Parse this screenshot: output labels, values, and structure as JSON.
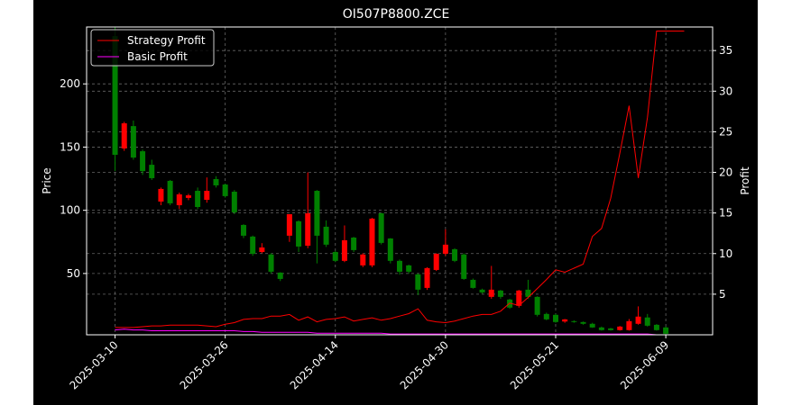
{
  "chart_data": {
    "type": "candlestick",
    "title": "OI507P8800.ZCE",
    "ylabel": "Price",
    "y2label": "Profit",
    "categories": [
      "2025-03-10",
      null,
      null,
      null,
      null,
      null,
      null,
      null,
      null,
      null,
      null,
      null,
      "2025-03-26",
      null,
      null,
      null,
      null,
      null,
      null,
      null,
      null,
      null,
      null,
      null,
      "2025-04-14",
      null,
      null,
      null,
      null,
      null,
      null,
      null,
      null,
      null,
      null,
      null,
      "2025-04-30",
      null,
      null,
      null,
      null,
      null,
      null,
      null,
      null,
      null,
      null,
      null,
      "2025-05-21",
      null,
      null,
      null,
      null,
      null,
      null,
      null,
      null,
      null,
      null,
      null,
      "2025-06-09",
      null,
      null
    ],
    "open": [
      237.8,
      148.9,
      166.6,
      146.7,
      136,
      106.9,
      123.3,
      104,
      109.8,
      115.4,
      108.3,
      124.7,
      120.4,
      114.7,
      88.4,
      79.2,
      67,
      65,
      50.7,
      79.9,
      91.3,
      72,
      115.4,
      87,
      67,
      60,
      78.4,
      56.4,
      56.4,
      97.6,
      77.7,
      60,
      56.4,
      49.3,
      38.6,
      52.8,
      65.6,
      69.2,
      65,
      45,
      37.2,
      31.5,
      36.5,
      29.4,
      24.4,
      37.2,
      31.5,
      18,
      17.3,
      12,
      12.3,
      11.6,
      10.2,
      7.3,
      6.5,
      5.2,
      5.2,
      10.2,
      15.2,
      9.4,
      7.3,
      null,
      null
    ],
    "high": [
      245,
      170,
      171,
      148,
      140,
      118,
      124,
      114,
      113,
      118,
      126,
      127,
      121,
      116,
      89,
      80,
      74,
      66,
      51,
      97,
      92,
      130,
      116,
      92,
      68,
      88,
      79,
      66,
      94,
      98,
      78,
      61,
      57,
      50,
      55,
      66,
      85,
      70,
      66,
      46,
      38,
      56,
      37,
      30,
      37,
      45,
      32,
      19,
      18,
      14,
      13,
      12,
      11,
      8,
      7,
      8.5,
      14,
      24,
      18,
      10,
      8,
      null,
      null
    ],
    "low": [
      131,
      147,
      140,
      128,
      124,
      104,
      104,
      101,
      108,
      101,
      106,
      118,
      110,
      97,
      78,
      64,
      66,
      50,
      44,
      75,
      67,
      70,
      58,
      71,
      59,
      59,
      67,
      55,
      55,
      73,
      58,
      49,
      50,
      33,
      37,
      52,
      64,
      59,
      45,
      38,
      34,
      30,
      30,
      22,
      23,
      30,
      16,
      13,
      11,
      11,
      11,
      9.5,
      7,
      4.8,
      4.8,
      4.8,
      4.8,
      9.5,
      8,
      4.8,
      1.9,
      null,
      null
    ],
    "close": [
      143.9,
      168.8,
      141.7,
      131,
      125.4,
      116.9,
      105.5,
      112.6,
      111.8,
      102.6,
      115.4,
      119.7,
      111.2,
      98.4,
      79.9,
      65.6,
      70.6,
      51.4,
      45.7,
      96.9,
      71.3,
      97.6,
      79.9,
      72.8,
      60,
      76.3,
      68.5,
      65,
      93.4,
      74.2,
      60,
      51.4,
      51.4,
      37.2,
      54.3,
      65.6,
      72.8,
      60,
      45.7,
      38.6,
      35,
      37.2,
      31.5,
      23,
      36.5,
      31.5,
      17.3,
      13.7,
      11.6,
      13.7,
      11.6,
      10.2,
      7.3,
      5.2,
      5.2,
      8,
      12.3,
      15.9,
      8.7,
      5.2,
      2.3,
      null,
      null
    ],
    "up_color": "#ff0000",
    "down_color": "#008000",
    "series": [
      {
        "name": "Strategy Profit",
        "color": "#ff0000",
        "axis": "y2",
        "values": [
          0.9,
          0.9,
          0.9,
          1.0,
          1.1,
          1.1,
          1.2,
          1.2,
          1.2,
          1.2,
          1.1,
          1.0,
          1.3,
          1.5,
          1.9,
          2.0,
          2.0,
          2.3,
          2.3,
          2.5,
          1.8,
          2.2,
          1.6,
          1.9,
          2.0,
          2.2,
          1.7,
          1.9,
          2.1,
          1.8,
          2.0,
          2.3,
          2.6,
          3.2,
          1.8,
          1.6,
          1.5,
          1.7,
          2.0,
          2.3,
          2.5,
          2.5,
          2.9,
          3.9,
          3.6,
          4.6,
          5.7,
          6.8,
          8.0,
          7.7,
          8.2,
          8.7,
          12.1,
          13.1,
          16.8,
          22.4,
          28.2,
          19.3,
          26.8,
          37.4,
          37.4,
          37.4,
          37.4
        ]
      },
      {
        "name": "Basic Profit",
        "color": "#ff00ff",
        "axis": "y2",
        "values": [
          0.6,
          0.7,
          0.6,
          0.6,
          0.5,
          0.5,
          0.5,
          0.5,
          0.5,
          0.5,
          0.5,
          0.5,
          0.5,
          0.5,
          0.4,
          0.4,
          0.3,
          0.3,
          0.3,
          0.3,
          0.3,
          0.3,
          0.2,
          0.2,
          0.2,
          0.2,
          0.2,
          0.2,
          0.2,
          0.2,
          0.1,
          0.1,
          0.1,
          0.1,
          0.1,
          0.1,
          0.1,
          0.1,
          0.1,
          0.1,
          0.1,
          0.1,
          0.1,
          0.1,
          0.1,
          0.1,
          0.1,
          0.1,
          0.1,
          0.1,
          0.1,
          0.1,
          0.1,
          0.1,
          0.1,
          0.1,
          0.1,
          0.1,
          0.1,
          0.0,
          0.0,
          0.0,
          0.0
        ]
      }
    ],
    "ylim": [
      1.5,
      245
    ],
    "yticks": [
      50,
      100,
      150,
      200
    ],
    "y2lim": [
      0,
      37.9
    ],
    "y2ticks": [
      5,
      10,
      15,
      20,
      25,
      30,
      35
    ],
    "grid": true,
    "legend": "upper left"
  }
}
